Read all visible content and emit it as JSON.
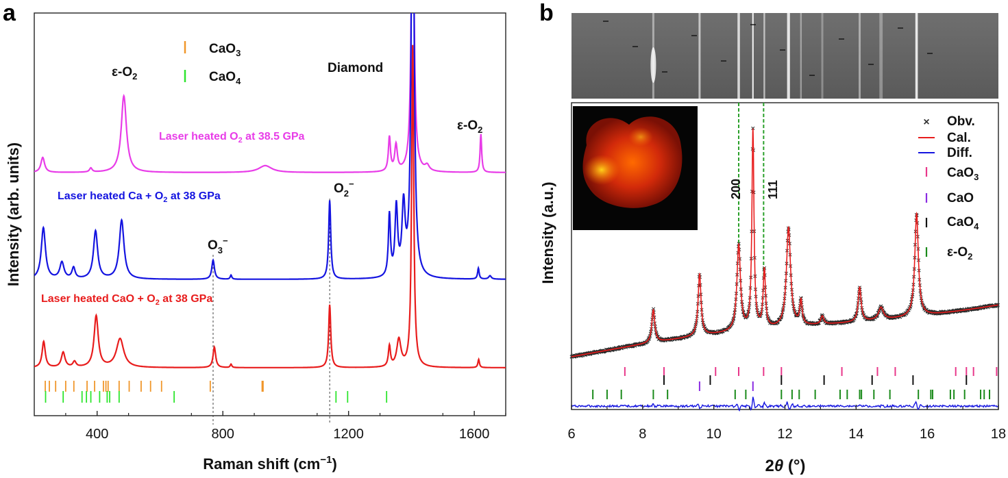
{
  "panels": {
    "a": {
      "letter": "a"
    },
    "b": {
      "letter": "b"
    }
  },
  "chart_data": [
    {
      "panel": "a",
      "type": "line",
      "title": "",
      "xlabel": "Raman shift (cm⁻¹)",
      "xlabel_parts": {
        "main": "Raman shift (cm",
        "sup": "−1",
        "close": ")"
      },
      "ylabel": "Intensity (arb. units)",
      "xlim": [
        200,
        1700
      ],
      "xticks": [
        400,
        800,
        1200,
        1600
      ],
      "xtick_labels": [
        "400",
        "800",
        "1200",
        "1600"
      ],
      "series": [
        {
          "name": "Laser heated O2 at 38.5 GPa",
          "label_parts": {
            "pre": "Laser heated O",
            "sub": "2",
            "post": " at 38.5 GPa"
          },
          "color": "#e83ce8",
          "baseline": 0.0,
          "peaks": [
            [
              227,
              22,
              7
            ],
            [
              380,
              6,
              5
            ],
            [
              485,
              112,
              10
            ],
            [
              935,
              10,
              25
            ],
            [
              1330,
              50,
              4
            ],
            [
              1351,
              38,
              5
            ],
            [
              1404,
              460,
              5
            ],
            [
              1450,
              8,
              8
            ],
            [
              1621,
              56,
              3
            ]
          ]
        },
        {
          "name": "Laser heated Ca + O2 at 38 GPa",
          "label_parts": {
            "pre": "Laser heated Ca + O",
            "sub": "2",
            "post": " at 38 GPa"
          },
          "color": "#1414e0",
          "baseline": 0.0,
          "peaks": [
            [
              229,
              75,
              8
            ],
            [
              288,
              24,
              8
            ],
            [
              325,
              16,
              6
            ],
            [
              395,
              70,
              8
            ],
            [
              478,
              86,
              9
            ],
            [
              769,
              28,
              5
            ],
            [
              826,
              6,
              3
            ],
            [
              1140,
              115,
              4
            ],
            [
              1330,
              90,
              4
            ],
            [
              1352,
              100,
              5
            ],
            [
              1375,
              100,
              6
            ],
            [
              1404,
              700,
              5
            ],
            [
              1613,
              16,
              3
            ],
            [
              1650,
              5,
              5
            ]
          ]
        },
        {
          "name": "Laser heated CaO + O2 at 38 GPa",
          "label_parts": {
            "pre": "Laser heated CaO + O",
            "sub": "2",
            "post": " at 38 GPa"
          },
          "color": "#e81c1c",
          "baseline": 0.0,
          "peaks": [
            [
              230,
              38,
              6
            ],
            [
              292,
              22,
              7
            ],
            [
              328,
              8,
              6
            ],
            [
              397,
              75,
              8
            ],
            [
              473,
              42,
              14
            ],
            [
              773,
              30,
              5
            ],
            [
              826,
              5,
              3
            ],
            [
              1140,
              92,
              4
            ],
            [
              1330,
              30,
              4
            ],
            [
              1360,
              40,
              8
            ],
            [
              1404,
              470,
              4
            ],
            [
              1614,
              12,
              3
            ]
          ]
        }
      ],
      "annotations": [
        {
          "text_parts": {
            "pre": "ε-O",
            "sub": "2",
            "sup": ""
          },
          "x": 485
        },
        {
          "text_parts": {
            "pre": "Diamond",
            "sub": "",
            "sup": ""
          },
          "x": 1320
        },
        {
          "text_parts": {
            "pre": "ε-O",
            "sub": "2",
            "sup": ""
          },
          "x": 1621
        },
        {
          "text_parts": {
            "pre": "O",
            "sub": "2",
            "sup": "−"
          },
          "x": 1140
        },
        {
          "text_parts": {
            "pre": "O",
            "sub": "3",
            "sup": "−"
          },
          "x": 769
        }
      ],
      "reference_lines": [
        769,
        1140
      ],
      "legend": [
        {
          "label_parts": {
            "pre": "CaO",
            "sub": "3"
          },
          "color": "#f0962a"
        },
        {
          "label_parts": {
            "pre": "CaO",
            "sub": "4"
          },
          "color": "#2ee52e"
        }
      ],
      "tick_marks": {
        "CaO3": {
          "color": "#f0962a",
          "positions": [
            235,
            248,
            268,
            300,
            326,
            368,
            392,
            420,
            428,
            435,
            470,
            502,
            540,
            570,
            605,
            760,
            925,
            928
          ]
        },
        "CaO4": {
          "color": "#2ee52e",
          "positions": [
            236,
            292,
            352,
            366,
            380,
            408,
            432,
            440,
            470,
            645,
            1160,
            1197,
            1321
          ]
        }
      }
    },
    {
      "panel": "b",
      "type": "scatter",
      "title": "",
      "xlabel": "2θ (°)",
      "xlabel_parts": {
        "italic": "θ",
        "pre": "2",
        "post": " (°)"
      },
      "ylabel": "Intensity (a.u.)",
      "xlim": [
        6,
        18
      ],
      "xticks": [
        6,
        8,
        10,
        12,
        14,
        16,
        18
      ],
      "xtick_labels": [
        "6",
        "8",
        "10",
        "12",
        "14",
        "16",
        "18"
      ],
      "background": {
        "start": 0.0,
        "end": 1.0
      },
      "peaks": [
        [
          8.3,
          48,
          0.05
        ],
        [
          9.6,
          90,
          0.05
        ],
        [
          10.7,
          125,
          0.06
        ],
        [
          11.1,
          290,
          0.035
        ],
        [
          11.42,
          85,
          0.04
        ],
        [
          12.1,
          145,
          0.07
        ],
        [
          12.45,
          35,
          0.04
        ],
        [
          13.05,
          12,
          0.05
        ],
        [
          14.1,
          50,
          0.05
        ],
        [
          14.7,
          18,
          0.08
        ],
        [
          15.7,
          150,
          0.06
        ]
      ],
      "guide_lines": [
        {
          "x": 10.7,
          "label": "200"
        },
        {
          "x": 11.4,
          "label": "111"
        }
      ],
      "legend": [
        {
          "label_parts": {
            "pre": "Obv.",
            "sub": ""
          },
          "symbol": "cross",
          "color": "#333333"
        },
        {
          "label_parts": {
            "pre": "Cal.",
            "sub": ""
          },
          "symbol": "line",
          "color": "#e81c1c"
        },
        {
          "label_parts": {
            "pre": "Diff.",
            "sub": ""
          },
          "symbol": "line",
          "color": "#1414e0"
        },
        {
          "label_parts": {
            "pre": "CaO",
            "sub": "3"
          },
          "symbol": "tick",
          "color": "#e8378a"
        },
        {
          "label_parts": {
            "pre": "CaO",
            "sub": ""
          },
          "symbol": "tick",
          "color": "#8a2be2"
        },
        {
          "label_parts": {
            "pre": "CaO",
            "sub": "4"
          },
          "symbol": "tick",
          "color": "#111111"
        },
        {
          "label_parts": {
            "pre": "ε-O",
            "sub": "2"
          },
          "symbol": "tick",
          "color": "#1a8a1a"
        }
      ],
      "tick_marks": {
        "CaO3": {
          "color": "#e8378a",
          "positions": [
            7.5,
            8.6,
            10.05,
            10.7,
            11.4,
            11.9,
            13.6,
            14.6,
            15.1,
            16.8,
            17.1,
            17.3,
            17.95
          ]
        },
        "CaO": {
          "color": "#8a2be2",
          "positions": [
            9.6,
            11.1
          ]
        },
        "CaO4": {
          "color": "#111111",
          "positions": [
            8.6,
            9.9,
            11.9,
            13.1,
            14.45,
            15.6,
            17.1
          ]
        },
        "eps-O2": {
          "color": "#1a8a1a",
          "positions": [
            6.6,
            7.0,
            7.4,
            8.3,
            8.7,
            10.6,
            10.9,
            11.9,
            12.2,
            12.4,
            12.85,
            13.55,
            13.75,
            14.1,
            14.15,
            14.5,
            14.95,
            15.75,
            16.1,
            16.15,
            16.65,
            16.75,
            17.05,
            17.5,
            17.6,
            17.75
          ]
        }
      }
    }
  ]
}
